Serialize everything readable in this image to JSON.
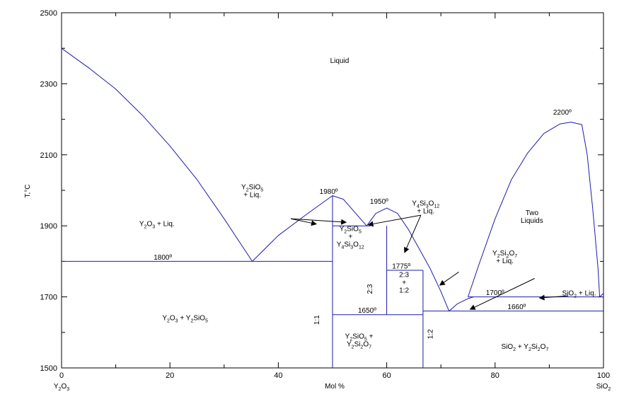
{
  "chart_data": {
    "type": "line",
    "title": "",
    "xlabel": "Mol %",
    "ylabel": "T,°C",
    "xlim": [
      0,
      100
    ],
    "ylim": [
      1500,
      2500
    ],
    "x_ticks": [
      "0",
      "20",
      "40",
      "60",
      "80",
      "100"
    ],
    "y_ticks": [
      "1500",
      "1700",
      "1900",
      "2100",
      "2300",
      "2500"
    ],
    "x_end_labels": {
      "left": [
        {
          "t": "Y"
        },
        {
          "t": "2",
          "sub": true
        },
        {
          "t": "O"
        },
        {
          "t": "3",
          "sub": true
        }
      ],
      "right": [
        {
          "t": "SiO"
        },
        {
          "t": "2",
          "sub": true
        }
      ]
    },
    "grid": false,
    "series": [
      {
        "values": [
          [
            0,
            2400
          ],
          [
            5,
            2345
          ],
          [
            10,
            2285
          ],
          [
            15,
            2210
          ],
          [
            20,
            2125
          ],
          [
            25,
            2030
          ],
          [
            30,
            1920
          ],
          [
            35.2,
            1800
          ]
        ]
      },
      {
        "values": [
          [
            35.2,
            1800
          ],
          [
            40,
            1873
          ],
          [
            45,
            1930
          ],
          [
            50,
            1985
          ],
          [
            52,
            1975
          ],
          [
            54,
            1940
          ],
          [
            56.3,
            1900
          ]
        ]
      },
      {
        "values": [
          [
            56.3,
            1900
          ],
          [
            58,
            1935
          ],
          [
            60,
            1950
          ],
          [
            62,
            1935
          ],
          [
            64,
            1890
          ],
          [
            66,
            1835
          ],
          [
            68,
            1780
          ],
          [
            70,
            1715
          ],
          [
            71.5,
            1660
          ]
        ]
      },
      {
        "values": [
          [
            71.5,
            1660
          ],
          [
            73,
            1680
          ],
          [
            75,
            1695
          ],
          [
            76,
            1700
          ]
        ]
      },
      {
        "values": [
          [
            75,
            1700
          ],
          [
            77,
            1790
          ],
          [
            80,
            1920
          ],
          [
            83,
            2030
          ],
          [
            86,
            2105
          ],
          [
            89,
            2160
          ],
          [
            92,
            2187
          ],
          [
            94,
            2192
          ],
          [
            96,
            2185
          ],
          [
            97,
            2100
          ],
          [
            98,
            1950
          ],
          [
            99,
            1780
          ],
          [
            99.3,
            1700
          ]
        ]
      },
      {
        "values": [
          [
            99.3,
            1700
          ],
          [
            100,
            1710
          ]
        ]
      }
    ],
    "isotherms": [
      {
        "x": [
          0,
          50
        ],
        "y": 1800,
        "label": "1800º",
        "label_x": 17,
        "label_y": 1805
      },
      {
        "x": [
          50,
          57
        ],
        "y": 1900
      },
      {
        "x": [
          60,
          66.7
        ],
        "y": 1775,
        "label": "1775º",
        "label_x": 61,
        "label_y": 1780
      },
      {
        "x": [
          50,
          66.7
        ],
        "y": 1650,
        "label": "1650º",
        "label_x": 54.7,
        "label_y": 1655
      },
      {
        "x": [
          66.7,
          100
        ],
        "y": 1660,
        "label": "1660º",
        "label_x": 82.3,
        "label_y": 1665
      },
      {
        "x": [
          75,
          100
        ],
        "y": 1700,
        "label": "1700º",
        "label_x": 78.3,
        "label_y": 1705
      }
    ],
    "compound_lines": [
      {
        "x": 50,
        "y": [
          1500,
          1985
        ],
        "label": "1:1",
        "label_x": 47.5,
        "label_y": 1635
      },
      {
        "x": 60,
        "y": [
          1650,
          1900
        ],
        "label": "2:3",
        "label_x": 57.3,
        "label_y": 1722
      },
      {
        "x": 66.7,
        "y": [
          1500,
          1775
        ],
        "label": "1:2",
        "label_x": 68.5,
        "label_y": 1595
      }
    ],
    "point_labels": [
      {
        "text": "1980º",
        "x": 49.3,
        "y": 1990
      },
      {
        "text": "1950º",
        "x": 58.6,
        "y": 1962
      },
      {
        "text": "2200º",
        "x": 92.4,
        "y": 2213
      }
    ],
    "regions": [
      {
        "lines": [
          [
            {
              "t": "Liquid"
            }
          ]
        ],
        "x": 51.3,
        "y": 2365
      },
      {
        "lines": [
          [
            {
              "t": "Y"
            },
            {
              "t": "2",
              "sub": true
            },
            {
              "t": "O"
            },
            {
              "t": "3",
              "sub": true
            },
            {
              "t": " + Liq."
            }
          ]
        ],
        "x": 17.6,
        "y": 1905
      },
      {
        "lines": [
          [
            {
              "t": "Y"
            },
            {
              "t": "2",
              "sub": true
            },
            {
              "t": "SiO"
            },
            {
              "t": "5",
              "sub": true
            }
          ],
          [
            {
              "t": "+ Liq."
            }
          ]
        ],
        "x": 35.2,
        "y": 1998
      },
      {
        "lines": [
          [
            {
              "t": "Y"
            },
            {
              "t": "4",
              "sub": true
            },
            {
              "t": "Si"
            },
            {
              "t": "3",
              "sub": true
            },
            {
              "t": "O"
            },
            {
              "t": "12",
              "sub": true
            }
          ],
          [
            {
              "t": "+ Liq."
            }
          ]
        ],
        "x": 67.2,
        "y": 1952
      },
      {
        "lines": [
          [
            {
              "t": "Y"
            },
            {
              "t": "2",
              "sub": true
            },
            {
              "t": "SiO"
            },
            {
              "t": "5",
              "sub": true
            }
          ],
          [
            {
              "t": "+"
            }
          ],
          [
            {
              "t": "Y"
            },
            {
              "t": "4",
              "sub": true
            },
            {
              "t": "Si"
            },
            {
              "t": "3",
              "sub": true
            },
            {
              "t": "O"
            },
            {
              "t": "12",
              "sub": true
            }
          ]
        ],
        "x": 53.3,
        "y": 1870
      },
      {
        "lines": [
          [
            {
              "t": "2:3"
            }
          ],
          [
            {
              "t": "+"
            }
          ],
          [
            {
              "t": "1:2"
            }
          ]
        ],
        "x": 63.2,
        "y": 1740
      },
      {
        "lines": [
          [
            {
              "t": "Two"
            }
          ],
          [
            {
              "t": "Liquids"
            }
          ]
        ],
        "x": 86.8,
        "y": 1925
      },
      {
        "lines": [
          [
            {
              "t": "Y"
            },
            {
              "t": "2",
              "sub": true
            },
            {
              "t": "Si"
            },
            {
              "t": "2",
              "sub": true
            },
            {
              "t": "O"
            },
            {
              "t": "7",
              "sub": true
            }
          ],
          [
            {
              "t": "+ Liq."
            }
          ]
        ],
        "x": 81.8,
        "y": 1812
      },
      {
        "lines": [
          [
            {
              "t": "SiO"
            },
            {
              "t": "2",
              "sub": true
            },
            {
              "t": " + Liq."
            }
          ]
        ],
        "x": 95.5,
        "y": 1710
      },
      {
        "lines": [
          [
            {
              "t": "Y"
            },
            {
              "t": "2",
              "sub": true
            },
            {
              "t": "O"
            },
            {
              "t": "3",
              "sub": true
            },
            {
              "t": " + Y"
            },
            {
              "t": "2",
              "sub": true
            },
            {
              "t": "SiO"
            },
            {
              "t": "5",
              "sub": true
            }
          ]
        ],
        "x": 22.8,
        "y": 1640
      },
      {
        "lines": [
          [
            {
              "t": "Y"
            },
            {
              "t": "2",
              "sub": true
            },
            {
              "t": "SiO"
            },
            {
              "t": "5",
              "sub": true
            },
            {
              "t": " +"
            }
          ],
          [
            {
              "t": "Y"
            },
            {
              "t": "2",
              "sub": true
            },
            {
              "t": "Si"
            },
            {
              "t": "2",
              "sub": true
            },
            {
              "t": "O"
            },
            {
              "t": "7",
              "sub": true
            }
          ]
        ],
        "x": 54.9,
        "y": 1578
      },
      {
        "lines": [
          [
            {
              "t": "SiO"
            },
            {
              "t": "2",
              "sub": true
            },
            {
              "t": " + Y"
            },
            {
              "t": "2",
              "sub": true
            },
            {
              "t": "Si"
            },
            {
              "t": "2",
              "sub": true
            },
            {
              "t": "O"
            },
            {
              "t": "7",
              "sub": true
            }
          ]
        ],
        "x": 85.5,
        "y": 1560
      }
    ],
    "arrows": [
      {
        "x1": 42.3,
        "y1": 1920,
        "x2": 47.0,
        "y2": 1905
      },
      {
        "x1": 42.3,
        "y1": 1920,
        "x2": 52.5,
        "y2": 1910
      },
      {
        "x1": 66.3,
        "y1": 1930,
        "x2": 56.6,
        "y2": 1903
      },
      {
        "x1": 66.3,
        "y1": 1930,
        "x2": 63.3,
        "y2": 1825
      },
      {
        "x1": 73.3,
        "y1": 1770,
        "x2": 69.8,
        "y2": 1733
      },
      {
        "x1": 87.3,
        "y1": 1752,
        "x2": 75.4,
        "y2": 1665
      },
      {
        "x1": 93.5,
        "y1": 1703,
        "x2": 88.2,
        "y2": 1697
      }
    ]
  }
}
